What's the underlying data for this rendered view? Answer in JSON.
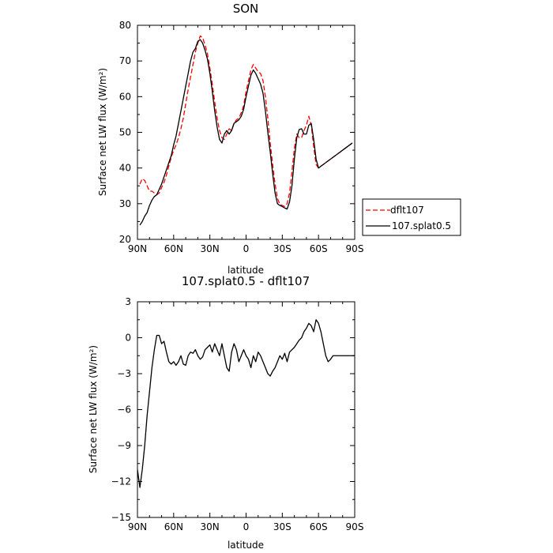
{
  "chart_data": [
    {
      "type": "line",
      "title": "SON",
      "xlabel": "latitude",
      "ylabel": "Surface net LW flux (W/m²)",
      "x_axis_reversed": true,
      "xlim": [
        90,
        -90
      ],
      "ylim": [
        20,
        80
      ],
      "xticks": [
        90,
        60,
        30,
        0,
        -30,
        -60,
        -90
      ],
      "xtick_labels": [
        "90N",
        "60N",
        "30N",
        "0",
        "30S",
        "60S",
        "90S"
      ],
      "yticks": [
        20,
        30,
        40,
        50,
        60,
        70,
        80
      ],
      "ytick_labels": [
        "20",
        "30",
        "40",
        "50",
        "60",
        "70",
        "80"
      ],
      "legend_position": "right",
      "series": [
        {
          "name": "dflt107",
          "color": "#ff0000",
          "style": "dashed",
          "x": [
            88,
            86,
            84,
            82,
            80,
            78,
            76,
            74,
            72,
            70,
            68,
            66,
            64,
            62,
            60,
            58,
            56,
            54,
            52,
            50,
            48,
            46,
            44,
            42,
            40,
            38,
            36,
            34,
            32,
            30,
            28,
            26,
            24,
            22,
            20,
            18,
            16,
            14,
            12,
            10,
            8,
            6,
            4,
            2,
            0,
            -2,
            -4,
            -6,
            -8,
            -10,
            -12,
            -14,
            -16,
            -18,
            -20,
            -22,
            -24,
            -26,
            -28,
            -30,
            -32,
            -34,
            -36,
            -38,
            -40,
            -42,
            -44,
            -46,
            -48,
            -50,
            -52,
            -54,
            -56,
            -58,
            -60,
            -62,
            -64,
            -66,
            -68,
            -70,
            -72,
            -74,
            -76,
            -78,
            -80,
            -82,
            -84,
            -86,
            -88
          ],
          "y": [
            35.5,
            37.0,
            36.5,
            35.0,
            33.5,
            33.5,
            33.0,
            32.5,
            33.0,
            34.5,
            36.0,
            38.0,
            40.5,
            43.0,
            45.0,
            46.5,
            48.5,
            51.0,
            54.0,
            58.0,
            62.0,
            65.5,
            69.0,
            72.5,
            75.0,
            77.0,
            76.5,
            74.5,
            72.0,
            68.0,
            63.5,
            58.5,
            54.0,
            50.5,
            48.5,
            48.0,
            49.5,
            51.0,
            50.5,
            52.5,
            53.5,
            54.0,
            55.5,
            57.5,
            61.5,
            64.5,
            67.5,
            69.0,
            68.0,
            67.0,
            66.5,
            64.5,
            60.0,
            54.0,
            47.0,
            41.0,
            35.5,
            31.5,
            29.8,
            29.5,
            29.2,
            30.0,
            33.0,
            39.0,
            45.5,
            49.5,
            48.5,
            48.5,
            50.5,
            52.0,
            54.5,
            52.0,
            46.0,
            41.0,
            40.0,
            40.5,
            41.0,
            41.5,
            42.0,
            42.5,
            43.0,
            43.5,
            44.0,
            44.5,
            45.0,
            45.5,
            46.0,
            46.5,
            47.0
          ]
        },
        {
          "name": "107.splat0.5",
          "color": "#000000",
          "style": "solid",
          "x": [
            88,
            86,
            84,
            82,
            80,
            78,
            76,
            74,
            72,
            70,
            68,
            66,
            64,
            62,
            60,
            58,
            56,
            54,
            52,
            50,
            48,
            46,
            44,
            42,
            40,
            38,
            36,
            34,
            32,
            30,
            28,
            26,
            24,
            22,
            20,
            18,
            16,
            14,
            12,
            10,
            8,
            6,
            4,
            2,
            0,
            -2,
            -4,
            -6,
            -8,
            -10,
            -12,
            -14,
            -16,
            -18,
            -20,
            -22,
            -24,
            -26,
            -28,
            -30,
            -32,
            -34,
            -36,
            -38,
            -40,
            -42,
            -44,
            -46,
            -48,
            -50,
            -52,
            -54,
            -56,
            -58,
            -60,
            -62,
            -64,
            -66,
            -68,
            -70,
            -72,
            -74,
            -76,
            -78,
            -80,
            -82,
            -84,
            -86,
            -88
          ],
          "y": [
            24.0,
            25.0,
            26.5,
            27.5,
            29.5,
            31.0,
            32.0,
            32.5,
            34.0,
            35.5,
            37.5,
            39.5,
            41.5,
            43.5,
            46.5,
            49.0,
            52.5,
            56.0,
            59.5,
            63.0,
            66.5,
            70.0,
            72.5,
            73.5,
            75.5,
            76.0,
            75.0,
            73.0,
            70.5,
            66.5,
            61.5,
            56.0,
            51.5,
            48.0,
            47.0,
            49.5,
            50.5,
            49.5,
            50.5,
            52.5,
            53.0,
            53.5,
            54.5,
            56.5,
            60.0,
            63.0,
            66.0,
            67.5,
            66.5,
            65.0,
            63.5,
            61.0,
            56.0,
            50.0,
            44.5,
            38.5,
            33.0,
            30.0,
            29.5,
            29.2,
            28.8,
            28.5,
            30.5,
            35.0,
            42.5,
            48.5,
            50.8,
            51.0,
            49.5,
            49.5,
            52.0,
            52.5,
            48.0,
            42.5,
            40.0,
            40.5,
            41.0,
            41.5,
            42.0,
            42.5,
            43.0,
            43.5,
            44.0,
            44.5,
            45.0,
            45.5,
            46.0,
            46.5,
            47.0
          ]
        }
      ]
    },
    {
      "type": "line",
      "title": "107.splat0.5 - dflt107",
      "xlabel": "latitude",
      "ylabel": "Surface net LW flux (W/m²)",
      "x_axis_reversed": true,
      "xlim": [
        90,
        -90
      ],
      "ylim": [
        -15,
        3
      ],
      "xticks": [
        90,
        60,
        30,
        0,
        -30,
        -60,
        -90
      ],
      "xtick_labels": [
        "90N",
        "60N",
        "30N",
        "0",
        "30S",
        "60S",
        "90S"
      ],
      "yticks": [
        3,
        0,
        -3,
        -6,
        -9,
        -12,
        -15
      ],
      "ytick_labels": [
        "3",
        "0",
        "−3",
        "−6",
        "−9",
        "−12",
        "−15"
      ],
      "series": [
        {
          "name": "",
          "color": "#000000",
          "style": "solid",
          "x": [
            90,
            88,
            86,
            84,
            82,
            80,
            78,
            76,
            74,
            72,
            70,
            68,
            66,
            64,
            62,
            60,
            58,
            56,
            54,
            52,
            50,
            48,
            46,
            44,
            42,
            40,
            38,
            36,
            34,
            32,
            30,
            28,
            26,
            24,
            22,
            20,
            18,
            16,
            14,
            12,
            10,
            8,
            6,
            4,
            2,
            0,
            -2,
            -4,
            -6,
            -8,
            -10,
            -12,
            -14,
            -16,
            -18,
            -20,
            -22,
            -24,
            -26,
            -28,
            -30,
            -32,
            -34,
            -36,
            -38,
            -40,
            -42,
            -44,
            -46,
            -48,
            -50,
            -52,
            -54,
            -56,
            -58,
            -60,
            -62,
            -64,
            -66,
            -68,
            -70,
            -72,
            -74,
            -76,
            -78,
            -80,
            -82,
            -84,
            -86,
            -88,
            -90
          ],
          "y": [
            -11.0,
            -12.5,
            -11.0,
            -9.0,
            -6.5,
            -4.5,
            -2.5,
            -1.0,
            0.2,
            0.2,
            -0.5,
            -0.3,
            -1.2,
            -2.0,
            -2.2,
            -2.0,
            -2.3,
            -2.0,
            -1.5,
            -2.2,
            -2.3,
            -1.5,
            -1.2,
            -1.3,
            -1.0,
            -1.5,
            -1.8,
            -1.6,
            -1.0,
            -0.8,
            -0.6,
            -1.2,
            -0.5,
            -1.0,
            -1.5,
            -0.5,
            -1.5,
            -2.5,
            -2.8,
            -1.2,
            -0.5,
            -1.0,
            -2.0,
            -1.5,
            -1.0,
            -1.5,
            -1.8,
            -2.5,
            -1.5,
            -2.0,
            -1.2,
            -1.5,
            -2.0,
            -2.5,
            -3.0,
            -3.2,
            -2.8,
            -2.5,
            -2.0,
            -1.5,
            -1.8,
            -1.3,
            -2.0,
            -1.2,
            -1.0,
            -0.8,
            -0.5,
            -0.2,
            0.0,
            0.5,
            0.8,
            1.2,
            1.0,
            0.5,
            1.5,
            1.2,
            0.5,
            -0.5,
            -1.5,
            -2.0,
            -1.8,
            -1.5,
            -1.5,
            -1.5,
            -1.5,
            -1.5,
            -1.5,
            -1.5,
            -1.5,
            -1.5,
            -1.5
          ]
        }
      ]
    }
  ]
}
